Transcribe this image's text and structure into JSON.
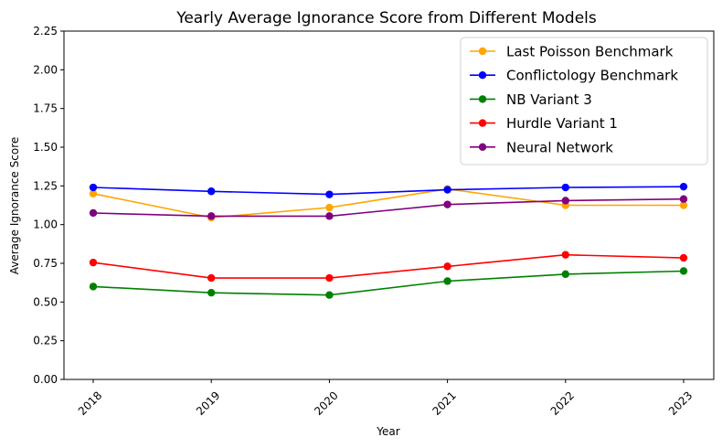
{
  "chart_data": {
    "type": "line",
    "title": "Yearly Average Ignorance Score from Different Models",
    "xlabel": "Year",
    "ylabel": "Average Ignorance Score",
    "categories": [
      "2018",
      "2019",
      "2020",
      "2021",
      "2022",
      "2023"
    ],
    "ylim": [
      0,
      2.25
    ],
    "yticks": [
      "0.00",
      "0.25",
      "0.50",
      "0.75",
      "1.00",
      "1.25",
      "1.50",
      "1.75",
      "2.00",
      "2.25"
    ],
    "grid": false,
    "legend_position": "top-right",
    "series": [
      {
        "name": "Last Poisson Benchmark",
        "color": "#ffa500",
        "values": [
          1.2,
          1.045,
          1.11,
          1.23,
          1.125,
          1.125
        ]
      },
      {
        "name": "Conflictology Benchmark",
        "color": "#0000ff",
        "values": [
          1.24,
          1.215,
          1.195,
          1.225,
          1.24,
          1.245
        ]
      },
      {
        "name": "NB Variant 3",
        "color": "#008000",
        "values": [
          0.6,
          0.56,
          0.545,
          0.635,
          0.68,
          0.7
        ]
      },
      {
        "name": "Hurdle Variant 1",
        "color": "#ff0000",
        "values": [
          0.755,
          0.655,
          0.655,
          0.73,
          0.805,
          0.785
        ]
      },
      {
        "name": "Neural Network",
        "color": "#800080",
        "values": [
          1.075,
          1.055,
          1.055,
          1.13,
          1.155,
          1.165
        ]
      }
    ]
  }
}
